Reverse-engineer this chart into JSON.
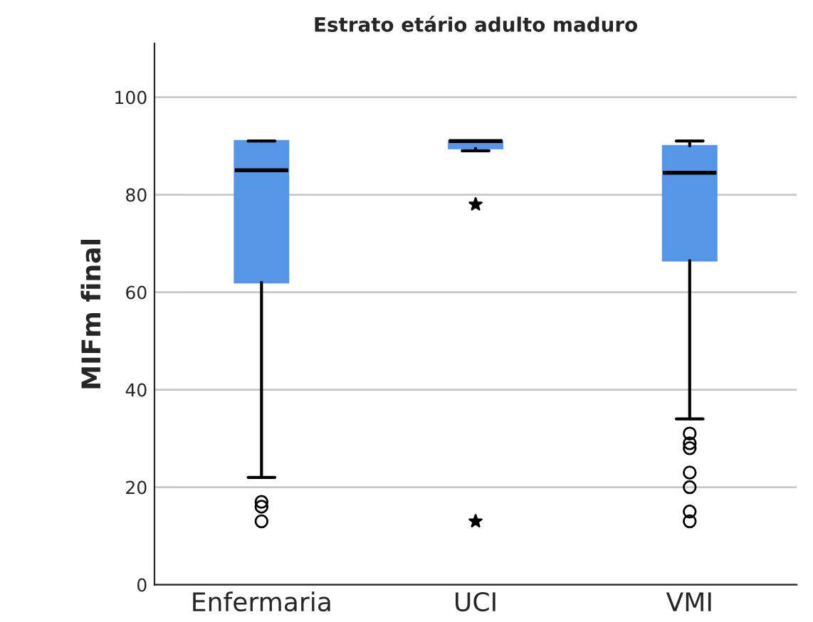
{
  "chart_data": {
    "type": "box",
    "title": "Estrato etário adulto maduro",
    "ylabel": "MIFm final",
    "categories": [
      "Enfermaria",
      "UCI",
      "VMI"
    ],
    "color": "#5596e6",
    "boxes": [
      {
        "low": 22,
        "q1": 62,
        "median": 85,
        "q3": 91,
        "high": 91,
        "outliers": [
          17,
          16,
          13
        ]
      },
      {
        "low": 89,
        "q1": 89.5,
        "median": 91,
        "q3": 91,
        "high": 91
      },
      {
        "low": 34,
        "q1": 66.5,
        "median": 84.5,
        "q3": 90,
        "high": 91,
        "outliers": [
          31,
          29,
          28,
          23,
          20,
          15,
          13
        ]
      }
    ],
    "series": [
      {
        "type": "scatter",
        "marker": "star",
        "color": "#000000",
        "x": [
          "UCI",
          "UCI"
        ],
        "values": [
          78,
          13
        ]
      }
    ],
    "ylim": [
      0,
      111
    ],
    "yticks": [
      0,
      20,
      40,
      60,
      80,
      100
    ],
    "grid": "y",
    "legend": false
  }
}
